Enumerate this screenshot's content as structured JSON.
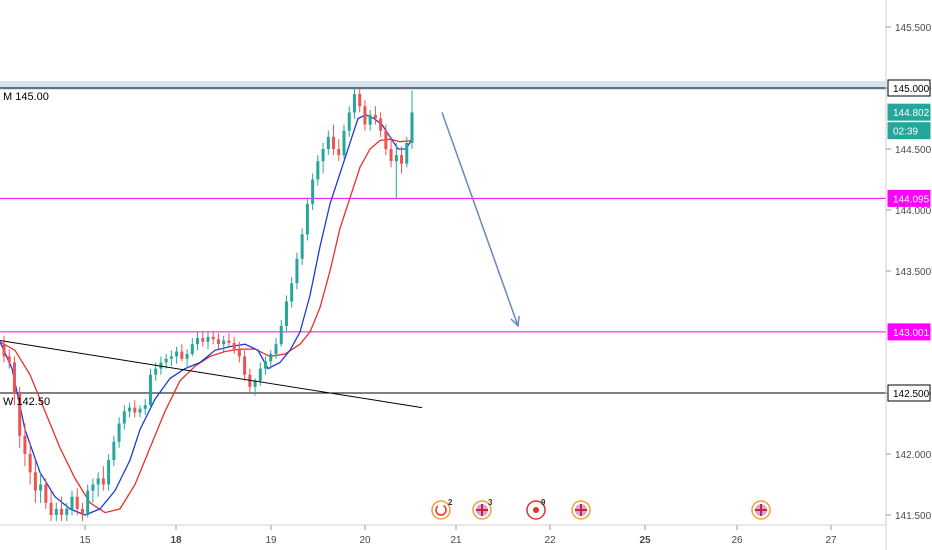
{
  "chart_data": {
    "type": "candlestick",
    "y_axis": {
      "range": [
        141.45,
        146.1
      ],
      "ticks": [
        "145.500",
        "145.000",
        "144.500",
        "144.000",
        "143.500",
        "142.500",
        "142.000",
        "141.500"
      ]
    },
    "x_axis": {
      "ticks": [
        "15",
        "18",
        "19",
        "20",
        "21",
        "22",
        "25",
        "26",
        "27"
      ],
      "bold_ticks": [
        "18",
        "25"
      ]
    },
    "price_tags": [
      {
        "label": "145.000",
        "value": 145.0,
        "style": "outline"
      },
      {
        "label": "144.802",
        "value": 144.802,
        "style": "green"
      },
      {
        "label": "02:39",
        "value": 144.65,
        "style": "green"
      },
      {
        "label": "144.095",
        "value": 144.095,
        "style": "magenta"
      },
      {
        "label": "143.001",
        "value": 143.001,
        "style": "magenta"
      },
      {
        "label": "142.500",
        "value": 142.5,
        "style": "outline"
      }
    ],
    "horizontal_lines": [
      {
        "label": "M 145.00",
        "value": 145.0,
        "color": "#000000",
        "band": true
      },
      {
        "label": "",
        "value": 144.095,
        "color": "#ff00ff"
      },
      {
        "label": "",
        "value": 143.001,
        "color": "#ff00ff"
      },
      {
        "label": "W 142.50",
        "value": 142.5,
        "color": "#000000"
      }
    ],
    "trendline": {
      "from": [
        0,
        142.93
      ],
      "to": [
        422,
        142.38
      ],
      "color": "#000000"
    },
    "arrow": {
      "from": [
        442,
        144.8
      ],
      "to": [
        518,
        143.05
      ],
      "color": "#6d86c1"
    },
    "event_markers": [
      {
        "kind": "recycle",
        "count": "2"
      },
      {
        "kind": "flag-uk",
        "count": "3"
      },
      {
        "kind": "target",
        "count": "9"
      },
      {
        "kind": "flag-uk",
        "count": ""
      },
      {
        "kind": "flag-uk",
        "count": ""
      }
    ],
    "series_colors": {
      "up": "#26a69a",
      "down": "#ef5350",
      "ma_fast": "#1e3ad6",
      "ma_slow": "#e8302a"
    },
    "candles": [
      [
        142.9,
        142.97,
        142.75,
        142.8
      ],
      [
        142.8,
        142.86,
        142.7,
        142.75
      ],
      [
        142.75,
        142.8,
        142.4,
        142.5
      ],
      [
        142.5,
        142.55,
        142.05,
        142.15
      ],
      [
        142.15,
        142.25,
        141.9,
        142.0
      ],
      [
        142.0,
        142.1,
        141.75,
        141.85
      ],
      [
        141.85,
        141.95,
        141.6,
        141.7
      ],
      [
        141.7,
        141.85,
        141.6,
        141.75
      ],
      [
        141.75,
        141.8,
        141.55,
        141.6
      ],
      [
        141.6,
        141.7,
        141.45,
        141.5
      ],
      [
        141.5,
        141.6,
        141.45,
        141.55
      ],
      [
        141.55,
        141.65,
        141.45,
        141.5
      ],
      [
        141.5,
        141.6,
        141.45,
        141.55
      ],
      [
        141.55,
        141.7,
        141.5,
        141.65
      ],
      [
        141.65,
        141.72,
        141.5,
        141.55
      ],
      [
        141.55,
        141.6,
        141.45,
        141.5
      ],
      [
        141.5,
        141.75,
        141.48,
        141.7
      ],
      [
        141.7,
        141.8,
        141.6,
        141.75
      ],
      [
        141.75,
        141.85,
        141.65,
        141.8
      ],
      [
        141.8,
        141.9,
        141.7,
        141.75
      ],
      [
        141.75,
        142.0,
        141.7,
        141.95
      ],
      [
        141.95,
        142.15,
        141.9,
        142.1
      ],
      [
        142.1,
        142.3,
        142.05,
        142.25
      ],
      [
        142.25,
        142.4,
        142.2,
        142.35
      ],
      [
        142.35,
        142.42,
        142.3,
        142.38
      ],
      [
        142.38,
        142.44,
        142.3,
        142.34
      ],
      [
        142.34,
        142.4,
        142.3,
        142.37
      ],
      [
        142.37,
        142.45,
        142.32,
        142.4
      ],
      [
        142.4,
        142.7,
        142.38,
        142.65
      ],
      [
        142.65,
        142.75,
        142.6,
        142.7
      ],
      [
        142.7,
        142.8,
        142.65,
        142.75
      ],
      [
        142.75,
        142.82,
        142.7,
        142.78
      ],
      [
        142.78,
        142.85,
        142.72,
        142.8
      ],
      [
        142.8,
        142.88,
        142.74,
        142.84
      ],
      [
        142.84,
        142.9,
        142.76,
        142.78
      ],
      [
        142.78,
        142.86,
        142.7,
        142.82
      ],
      [
        142.82,
        142.95,
        142.8,
        142.9
      ],
      [
        142.9,
        143.0,
        142.85,
        142.95
      ],
      [
        142.95,
        143.01,
        142.88,
        142.92
      ],
      [
        142.92,
        143.0,
        142.86,
        142.96
      ],
      [
        142.96,
        143.01,
        142.9,
        142.94
      ],
      [
        142.94,
        142.99,
        142.86,
        142.9
      ],
      [
        142.9,
        142.97,
        142.84,
        142.93
      ],
      [
        142.93,
        142.99,
        142.88,
        142.91
      ],
      [
        142.91,
        142.96,
        142.82,
        142.86
      ],
      [
        142.86,
        142.92,
        142.75,
        142.8
      ],
      [
        142.8,
        142.85,
        142.6,
        142.65
      ],
      [
        142.65,
        142.7,
        142.5,
        142.55
      ],
      [
        142.55,
        142.62,
        142.48,
        142.6
      ],
      [
        142.6,
        142.75,
        142.56,
        142.7
      ],
      [
        142.7,
        142.8,
        142.65,
        142.76
      ],
      [
        142.76,
        142.85,
        142.7,
        142.82
      ],
      [
        142.82,
        142.95,
        142.78,
        142.9
      ],
      [
        142.9,
        143.1,
        142.88,
        143.05
      ],
      [
        143.05,
        143.3,
        143.0,
        143.25
      ],
      [
        143.25,
        143.45,
        143.2,
        143.4
      ],
      [
        143.4,
        143.65,
        143.35,
        143.6
      ],
      [
        143.6,
        143.85,
        143.55,
        143.8
      ],
      [
        143.8,
        144.1,
        143.75,
        144.05
      ],
      [
        144.05,
        144.3,
        144.0,
        144.25
      ],
      [
        144.25,
        144.45,
        144.2,
        144.4
      ],
      [
        144.4,
        144.55,
        144.3,
        144.5
      ],
      [
        144.5,
        144.65,
        144.45,
        144.6
      ],
      [
        144.6,
        144.7,
        144.45,
        144.5
      ],
      [
        144.5,
        144.58,
        144.4,
        144.45
      ],
      [
        144.45,
        144.7,
        144.42,
        144.65
      ],
      [
        144.65,
        144.85,
        144.6,
        144.8
      ],
      [
        144.8,
        145.0,
        144.75,
        144.95
      ],
      [
        144.95,
        145.0,
        144.8,
        144.85
      ],
      [
        144.85,
        144.9,
        144.65,
        144.7
      ],
      [
        144.7,
        144.82,
        144.65,
        144.78
      ],
      [
        144.78,
        144.85,
        144.7,
        144.75
      ],
      [
        144.75,
        144.8,
        144.6,
        144.65
      ],
      [
        144.65,
        144.7,
        144.45,
        144.5
      ],
      [
        144.5,
        144.6,
        144.35,
        144.4
      ],
      [
        144.4,
        144.55,
        144.1,
        144.45
      ],
      [
        144.45,
        144.52,
        144.3,
        144.38
      ],
      [
        144.38,
        144.6,
        144.35,
        144.55
      ],
      [
        144.55,
        144.98,
        144.5,
        144.8
      ]
    ],
    "ma_fast": [
      [
        0,
        142.92
      ],
      [
        12,
        142.7
      ],
      [
        25,
        142.2
      ],
      [
        40,
        141.85
      ],
      [
        55,
        141.65
      ],
      [
        70,
        141.55
      ],
      [
        85,
        141.5
      ],
      [
        100,
        141.55
      ],
      [
        115,
        141.7
      ],
      [
        130,
        141.95
      ],
      [
        140,
        142.2
      ],
      [
        155,
        142.45
      ],
      [
        170,
        142.62
      ],
      [
        185,
        142.7
      ],
      [
        200,
        142.75
      ],
      [
        215,
        142.85
      ],
      [
        230,
        142.88
      ],
      [
        245,
        142.9
      ],
      [
        258,
        142.85
      ],
      [
        268,
        142.7
      ],
      [
        280,
        142.75
      ],
      [
        290,
        142.85
      ],
      [
        300,
        143.0
      ],
      [
        310,
        143.3
      ],
      [
        320,
        143.7
      ],
      [
        330,
        144.05
      ],
      [
        340,
        144.3
      ],
      [
        350,
        144.55
      ],
      [
        358,
        144.75
      ],
      [
        366,
        144.78
      ],
      [
        374,
        144.75
      ],
      [
        382,
        144.7
      ],
      [
        390,
        144.6
      ],
      [
        398,
        144.5
      ],
      [
        406,
        144.5
      ],
      [
        412,
        144.58
      ]
    ],
    "ma_slow": [
      [
        0,
        142.92
      ],
      [
        15,
        142.85
      ],
      [
        30,
        142.65
      ],
      [
        45,
        142.35
      ],
      [
        60,
        142.05
      ],
      [
        75,
        141.8
      ],
      [
        90,
        141.6
      ],
      [
        105,
        141.52
      ],
      [
        120,
        141.55
      ],
      [
        135,
        141.75
      ],
      [
        150,
        142.05
      ],
      [
        165,
        142.35
      ],
      [
        180,
        142.6
      ],
      [
        195,
        142.72
      ],
      [
        210,
        142.8
      ],
      [
        225,
        142.84
      ],
      [
        240,
        142.86
      ],
      [
        255,
        142.86
      ],
      [
        270,
        142.8
      ],
      [
        285,
        142.82
      ],
      [
        300,
        142.9
      ],
      [
        310,
        143.0
      ],
      [
        320,
        143.2
      ],
      [
        330,
        143.5
      ],
      [
        340,
        143.85
      ],
      [
        350,
        144.1
      ],
      [
        360,
        144.35
      ],
      [
        370,
        144.5
      ],
      [
        380,
        144.57
      ],
      [
        390,
        144.58
      ],
      [
        400,
        144.56
      ],
      [
        412,
        144.57
      ]
    ]
  }
}
